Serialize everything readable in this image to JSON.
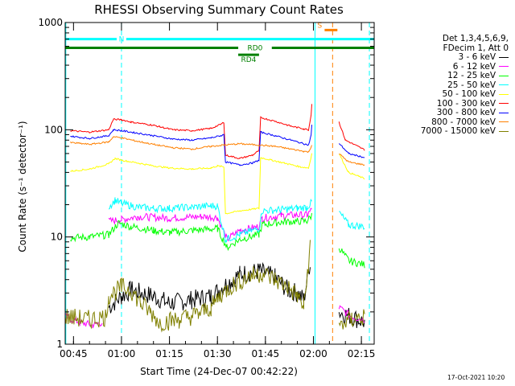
{
  "chart_data": {
    "type": "line",
    "title": "RHESSI Observing Summary Count Rates",
    "xlabel": "Start Time (24-Dec-07 00:42:22)",
    "ylabel": "Count Rate (s⁻¹ detector⁻¹)",
    "yscale": "log",
    "ylim": [
      1,
      1000
    ],
    "xlim_minutes": [
      42.4,
      139
    ],
    "x_ticks": [
      {
        "t": 45,
        "label": "00:45"
      },
      {
        "t": 60,
        "label": "01:00"
      },
      {
        "t": 75,
        "label": "01:15"
      },
      {
        "t": 90,
        "label": "01:30"
      },
      {
        "t": 105,
        "label": "01:45"
      },
      {
        "t": 120,
        "label": "02:00"
      },
      {
        "t": 135,
        "label": "02:15"
      }
    ],
    "y_major_ticks": [
      {
        "v": 1,
        "label": "1"
      },
      {
        "v": 10,
        "label": "10"
      },
      {
        "v": 100,
        "label": "100"
      },
      {
        "v": 1000,
        "label": "1000"
      }
    ],
    "legend_header": [
      "Det 1,3,4,5,6,9,",
      "FDecim 1, Att 0"
    ],
    "series": [
      {
        "name": "3 - 6 keV",
        "color": "#000000",
        "points": [
          [
            42.4,
            null
          ],
          [
            56,
            null
          ],
          [
            56,
            2.2
          ],
          [
            60,
            2.8
          ],
          [
            63,
            3.2
          ],
          [
            70,
            2.8
          ],
          [
            75,
            2.4
          ],
          [
            82,
            2.6
          ],
          [
            88,
            2.8
          ],
          [
            92,
            3.5
          ],
          [
            97,
            4.5
          ],
          [
            103,
            4.8
          ],
          [
            108,
            4.2
          ],
          [
            112,
            3.2
          ],
          [
            115,
            3.0
          ],
          [
            117,
            2.6
          ],
          [
            119,
            6
          ],
          [
            119.6,
            null
          ],
          [
            128,
            null
          ],
          [
            128,
            2.0
          ],
          [
            132,
            1.8
          ],
          [
            136,
            1.6
          ]
        ]
      },
      {
        "name": "6 - 12 keV",
        "color": "#ff00ff",
        "points": [
          [
            42.4,
            1.8
          ],
          [
            47,
            1.6
          ],
          [
            51,
            1.5
          ],
          [
            54,
            1.6
          ],
          [
            56,
            null
          ],
          [
            56,
            14
          ],
          [
            60,
            14.5
          ],
          [
            65,
            15.5
          ],
          [
            75,
            15
          ],
          [
            85,
            15.5
          ],
          [
            90,
            15.2
          ],
          [
            93,
            9.5
          ],
          [
            97,
            11.5
          ],
          [
            103,
            12.5
          ],
          [
            104,
            15
          ],
          [
            110,
            15.8
          ],
          [
            115,
            16
          ],
          [
            118,
            16
          ],
          [
            119.5,
            18
          ],
          [
            119.6,
            null
          ],
          [
            128,
            null
          ],
          [
            128,
            2.2
          ],
          [
            132,
            1.8
          ],
          [
            136,
            1.7
          ]
        ]
      },
      {
        "name": "12 - 25 keV",
        "color": "#00ff00",
        "points": [
          [
            44,
            9.8
          ],
          [
            50,
            10
          ],
          [
            56,
            10.5
          ],
          [
            59,
            13.5
          ],
          [
            63,
            12.5
          ],
          [
            70,
            11.5
          ],
          [
            75,
            11
          ],
          [
            82,
            11.5
          ],
          [
            90,
            12
          ],
          [
            93,
            8
          ],
          [
            97,
            9.5
          ],
          [
            103,
            10.5
          ],
          [
            104,
            13
          ],
          [
            110,
            13.8
          ],
          [
            115,
            14
          ],
          [
            118,
            14
          ],
          [
            119.5,
            16
          ],
          [
            119.6,
            null
          ],
          [
            128,
            null
          ],
          [
            128,
            8
          ],
          [
            131,
            6
          ],
          [
            136,
            5.5
          ]
        ]
      },
      {
        "name": "25 - 50 keV",
        "color": "#00ffff",
        "points": [
          [
            56,
            19
          ],
          [
            58,
            22
          ],
          [
            60,
            20.5
          ],
          [
            65,
            19
          ],
          [
            70,
            18.5
          ],
          [
            75,
            18.5
          ],
          [
            82,
            19
          ],
          [
            88,
            19.5
          ],
          [
            90,
            19.5
          ],
          [
            92.5,
            9.5
          ],
          [
            97,
            10.5
          ],
          [
            103,
            12
          ],
          [
            104,
            17.5
          ],
          [
            110,
            18
          ],
          [
            115,
            18.5
          ],
          [
            118,
            19
          ],
          [
            119.5,
            21
          ],
          [
            119.6,
            null
          ],
          [
            128,
            null
          ],
          [
            128,
            17
          ],
          [
            131,
            13
          ],
          [
            136,
            12.5
          ]
        ]
      },
      {
        "name": "50 - 100 keV",
        "color": "#ffff00",
        "points": [
          [
            44,
            41
          ],
          [
            50,
            43
          ],
          [
            56,
            48
          ],
          [
            58,
            54
          ],
          [
            60,
            52
          ],
          [
            65,
            49
          ],
          [
            70,
            46
          ],
          [
            75,
            44
          ],
          [
            82,
            43
          ],
          [
            88,
            44
          ],
          [
            90,
            46
          ],
          [
            92,
            45
          ],
          [
            92.5,
            16.5
          ],
          [
            97,
            17.5
          ],
          [
            103,
            18.5
          ],
          [
            103.5,
            55
          ],
          [
            107,
            52
          ],
          [
            112,
            48
          ],
          [
            116,
            45
          ],
          [
            118.5,
            44
          ],
          [
            119.5,
            60
          ],
          [
            119.6,
            null
          ],
          [
            128,
            null
          ],
          [
            128,
            60
          ],
          [
            131,
            40
          ],
          [
            136,
            35
          ]
        ]
      },
      {
        "name": "100 - 300 keV",
        "color": "#ff0000",
        "points": [
          [
            44,
            98
          ],
          [
            50,
            95
          ],
          [
            56,
            100
          ],
          [
            57.5,
            125
          ],
          [
            60,
            124
          ],
          [
            63,
            118
          ],
          [
            70,
            110
          ],
          [
            76,
            100
          ],
          [
            82,
            98
          ],
          [
            88,
            103
          ],
          [
            91,
            112
          ],
          [
            92,
            117
          ],
          [
            92.5,
            58
          ],
          [
            97,
            54
          ],
          [
            101,
            58
          ],
          [
            103,
            64
          ],
          [
            103.5,
            130
          ],
          [
            108,
            120
          ],
          [
            113,
            108
          ],
          [
            117,
            102
          ],
          [
            118.5,
            100
          ],
          [
            119.3,
            140
          ],
          [
            119.5,
            175
          ],
          [
            119.6,
            null
          ],
          [
            128,
            null
          ],
          [
            128,
            118
          ],
          [
            130,
            80
          ],
          [
            136,
            65
          ]
        ]
      },
      {
        "name": "300 - 800 keV",
        "color": "#0000ff",
        "points": [
          [
            44,
            87
          ],
          [
            50,
            83
          ],
          [
            56,
            88
          ],
          [
            57.5,
            100
          ],
          [
            60,
            98
          ],
          [
            65,
            93
          ],
          [
            70,
            88
          ],
          [
            76,
            82
          ],
          [
            82,
            80
          ],
          [
            88,
            84
          ],
          [
            91,
            88
          ],
          [
            92,
            90
          ],
          [
            92.5,
            50
          ],
          [
            97,
            47
          ],
          [
            101,
            49
          ],
          [
            103,
            52
          ],
          [
            103.5,
            95
          ],
          [
            108,
            88
          ],
          [
            113,
            80
          ],
          [
            117,
            74
          ],
          [
            118.5,
            72
          ],
          [
            119.3,
            90
          ],
          [
            119.5,
            110
          ],
          [
            119.6,
            null
          ],
          [
            128,
            null
          ],
          [
            128,
            75
          ],
          [
            131,
            60
          ],
          [
            136,
            55
          ]
        ]
      },
      {
        "name": "800 - 7000 keV",
        "color": "#ff8000",
        "points": [
          [
            44,
            76
          ],
          [
            50,
            73
          ],
          [
            56,
            77
          ],
          [
            57.5,
            86
          ],
          [
            60,
            84
          ],
          [
            65,
            78
          ],
          [
            70,
            73
          ],
          [
            76,
            68
          ],
          [
            82,
            66
          ],
          [
            88,
            70
          ],
          [
            92,
            72
          ],
          [
            97,
            74
          ],
          [
            103,
            72
          ],
          [
            108,
            70
          ],
          [
            113,
            66
          ],
          [
            117,
            63
          ],
          [
            118.5,
            62
          ],
          [
            119.5,
            72
          ],
          [
            119.6,
            null
          ],
          [
            128,
            null
          ],
          [
            128,
            60
          ],
          [
            131,
            50
          ],
          [
            136,
            47
          ]
        ]
      },
      {
        "name": "7000 - 15000 keV",
        "color": "#808000",
        "points": [
          [
            42.4,
            1.8
          ],
          [
            50,
            1.7
          ],
          [
            55,
            1.8
          ],
          [
            56,
            2.8
          ],
          [
            60,
            3.4
          ],
          [
            63,
            3.2
          ],
          [
            66,
            2.4
          ],
          [
            69,
            2.0
          ],
          [
            72,
            1.6
          ],
          [
            78,
            1.7
          ],
          [
            84,
            1.9
          ],
          [
            88,
            2.2
          ],
          [
            91,
            2.9
          ],
          [
            95,
            3.6
          ],
          [
            100,
            4.3
          ],
          [
            104,
            4.6
          ],
          [
            108,
            4.0
          ],
          [
            112,
            3.4
          ],
          [
            115,
            2.8
          ],
          [
            117,
            2.2
          ],
          [
            119,
            8
          ],
          [
            119.6,
            null
          ],
          [
            128,
            null
          ],
          [
            128,
            1.5
          ],
          [
            132,
            1.7
          ],
          [
            136,
            1.8
          ]
        ]
      }
    ],
    "annotations": [
      {
        "label": "N",
        "color": "#00ffff",
        "kind": "flag",
        "t0": 42.4,
        "t1": 58.5,
        "level": 700,
        "gap_text": "N",
        "t2": 61.5,
        "t3": 139
      },
      {
        "label": "RD0",
        "color": "#008000",
        "kind": "flag",
        "t0": 42.4,
        "t1": 96.5,
        "level": 580,
        "t2": 107,
        "t3": 139
      },
      {
        "label": "RD4",
        "color": "#008000",
        "kind": "flag",
        "t0": 96.5,
        "t1": 103,
        "level": 500
      },
      {
        "label": "S",
        "color": "#ff8000",
        "kind": "flag",
        "t0": 123.5,
        "t1": 127.5,
        "level": 850
      }
    ],
    "vlines": [
      {
        "t": 60,
        "color": "#00ffff",
        "style": "dash"
      },
      {
        "t": 120.5,
        "color": "#00ffff",
        "style": "solid"
      },
      {
        "t": 126,
        "color": "#ff8000",
        "style": "dash"
      },
      {
        "t": 137.5,
        "color": "#00ffff",
        "style": "dash"
      },
      {
        "t": 42.6,
        "color": "#00ffff",
        "style": "solid"
      }
    ],
    "grid": false,
    "legend_position": "right"
  },
  "footer": {
    "date": "17-Oct-2021 10:20"
  }
}
